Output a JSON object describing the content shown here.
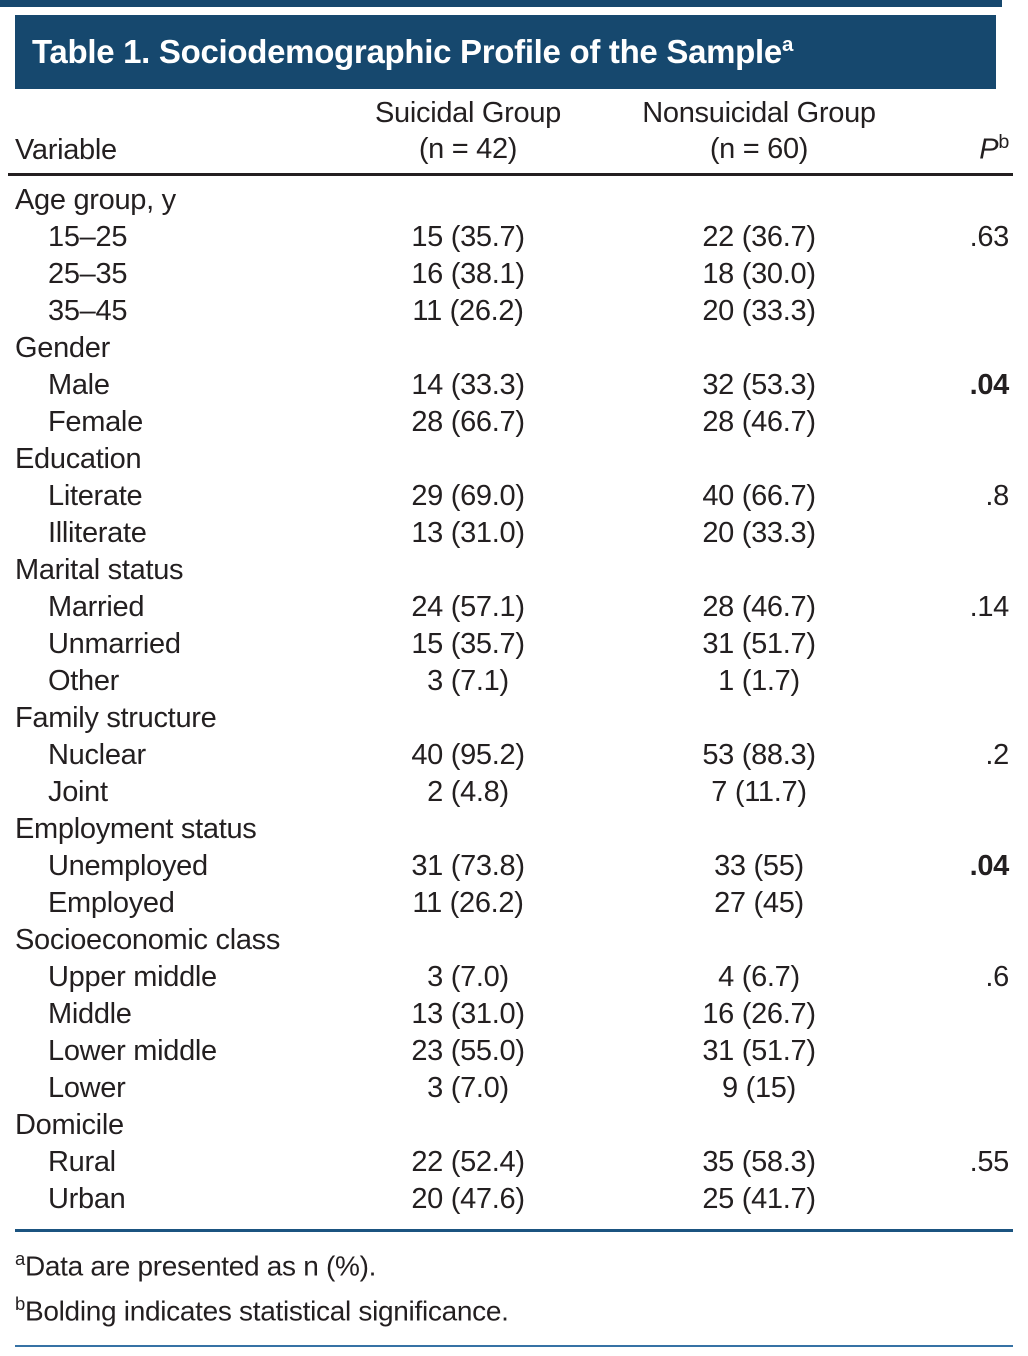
{
  "title": {
    "text": "Table 1. Sociodemographic Profile of the Sample",
    "sup": "a"
  },
  "header": {
    "variable": "Variable",
    "group1": {
      "line1": "Suicidal Group",
      "line2": "(n = 42)"
    },
    "group2": {
      "line1": "Nonsuicidal Group",
      "line2": "(n = 60)"
    },
    "p": {
      "label": "P",
      "sup": "b"
    }
  },
  "rows": [
    {
      "type": "category",
      "label": "Age group, y",
      "g1": "",
      "g2": "",
      "p": "",
      "pBold": false
    },
    {
      "type": "data",
      "label": "15–25",
      "g1": "15 (35.7)",
      "g2": "22 (36.7)",
      "p": ".63",
      "pBold": false
    },
    {
      "type": "data",
      "label": "25–35",
      "g1": "16 (38.1)",
      "g2": "18 (30.0)",
      "p": "",
      "pBold": false
    },
    {
      "type": "data",
      "label": "35–45",
      "g1": "11 (26.2)",
      "g2": "20 (33.3)",
      "p": "",
      "pBold": false
    },
    {
      "type": "category",
      "label": "Gender",
      "g1": "",
      "g2": "",
      "p": "",
      "pBold": false
    },
    {
      "type": "data",
      "label": "Male",
      "g1": "14 (33.3)",
      "g2": "32 (53.3)",
      "p": ".04",
      "pBold": true
    },
    {
      "type": "data",
      "label": "Female",
      "g1": "28 (66.7)",
      "g2": "28 (46.7)",
      "p": "",
      "pBold": false
    },
    {
      "type": "category",
      "label": "Education",
      "g1": "",
      "g2": "",
      "p": "",
      "pBold": false
    },
    {
      "type": "data",
      "label": "Literate",
      "g1": "29 (69.0)",
      "g2": "40 (66.7)",
      "p": ".8",
      "pBold": false
    },
    {
      "type": "data",
      "label": "Illiterate",
      "g1": "13 (31.0)",
      "g2": "20 (33.3)",
      "p": "",
      "pBold": false
    },
    {
      "type": "category",
      "label": "Marital status",
      "g1": "",
      "g2": "",
      "p": "",
      "pBold": false
    },
    {
      "type": "data",
      "label": "Married",
      "g1": "24 (57.1)",
      "g2": "28 (46.7)",
      "p": ".14",
      "pBold": false
    },
    {
      "type": "data",
      "label": "Unmarried",
      "g1": "15 (35.7)",
      "g2": "31 (51.7)",
      "p": "",
      "pBold": false
    },
    {
      "type": "data",
      "label": "Other",
      "g1": "3 (7.1)",
      "g2": "1 (1.7)",
      "p": "",
      "pBold": false
    },
    {
      "type": "category",
      "label": "Family structure",
      "g1": "",
      "g2": "",
      "p": "",
      "pBold": false
    },
    {
      "type": "data",
      "label": "Nuclear",
      "g1": "40 (95.2)",
      "g2": "53 (88.3)",
      "p": ".2",
      "pBold": false
    },
    {
      "type": "data",
      "label": "Joint",
      "g1": "2 (4.8)",
      "g2": "7 (11.7)",
      "p": "",
      "pBold": false
    },
    {
      "type": "category",
      "label": "Employment status",
      "g1": "",
      "g2": "",
      "p": "",
      "pBold": false
    },
    {
      "type": "data",
      "label": "Unemployed",
      "g1": "31 (73.8)",
      "g2": "33 (55)",
      "p": ".04",
      "pBold": true
    },
    {
      "type": "data",
      "label": "Employed",
      "g1": "11 (26.2)",
      "g2": "27 (45)",
      "p": "",
      "pBold": false
    },
    {
      "type": "category",
      "label": "Socioeconomic class",
      "g1": "",
      "g2": "",
      "p": "",
      "pBold": false
    },
    {
      "type": "data",
      "label": "Upper middle",
      "g1": "3 (7.0)",
      "g2": "4 (6.7)",
      "p": ".6",
      "pBold": false
    },
    {
      "type": "data",
      "label": "Middle",
      "g1": "13 (31.0)",
      "g2": "16 (26.7)",
      "p": "",
      "pBold": false
    },
    {
      "type": "data",
      "label": "Lower middle",
      "g1": "23 (55.0)",
      "g2": "31 (51.7)",
      "p": "",
      "pBold": false
    },
    {
      "type": "data",
      "label": "Lower",
      "g1": "3 (7.0)",
      "g2": "9 (15)",
      "p": "",
      "pBold": false
    },
    {
      "type": "category",
      "label": "Domicile",
      "g1": "",
      "g2": "",
      "p": "",
      "pBold": false
    },
    {
      "type": "data",
      "label": "Rural",
      "g1": "22 (52.4)",
      "g2": "35 (58.3)",
      "p": ".55",
      "pBold": false
    },
    {
      "type": "data",
      "label": "Urban",
      "g1": "20 (47.6)",
      "g2": "25 (41.7)",
      "p": "",
      "pBold": false
    }
  ],
  "footnotes": [
    {
      "sup": "a",
      "text": "Data are presented as n (%)."
    },
    {
      "sup": "b",
      "text": "Bolding indicates statistical significance."
    }
  ],
  "colors": {
    "banner": "#16486E",
    "header_rule": "#231F20",
    "body_rule": "#1B5480",
    "bottom_rule": "#3672A5",
    "text": "#231F20"
  }
}
